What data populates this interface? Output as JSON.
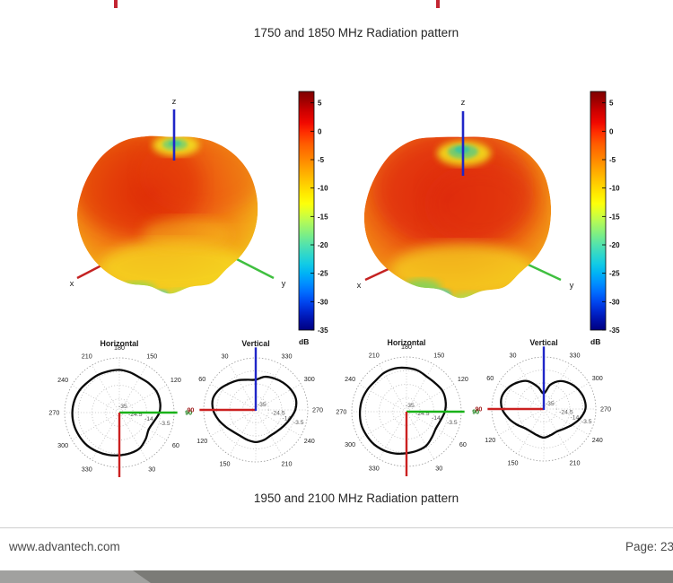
{
  "page": {
    "top_title": "1750 and 1850 MHz Radiation pattern",
    "bottom_title": "1950 and 2100 MHz Radiation pattern",
    "footer_url": "www.advantech.com",
    "footer_page": "Page: 23"
  },
  "axes3d": {
    "x": "x",
    "y": "y",
    "z": "z"
  },
  "colorbar": {
    "label": "dB",
    "ticks": [
      5,
      0,
      -5,
      -10,
      -15,
      -20,
      -25,
      -30,
      -35
    ],
    "vmax": 7,
    "vmin": -35
  },
  "chart_data": [
    {
      "type": "3d-surface",
      "description": "3D antenna radiation pattern, left plot",
      "colormap": "jet",
      "axis_labels": [
        "x",
        "y",
        "z"
      ],
      "colorbar_label": "dB",
      "colorbar_ticks": [
        5,
        0,
        -5,
        -10,
        -15,
        -20,
        -25,
        -30,
        -35
      ],
      "colorbar_range": [
        7,
        -35
      ]
    },
    {
      "type": "3d-surface",
      "description": "3D antenna radiation pattern, right plot",
      "colormap": "jet",
      "axis_labels": [
        "x",
        "y",
        "z"
      ],
      "colorbar_label": "dB",
      "colorbar_ticks": [
        5,
        0,
        -5,
        -10,
        -15,
        -20,
        -25,
        -30,
        -35
      ],
      "colorbar_range": [
        7,
        -35
      ]
    },
    {
      "type": "polar",
      "title": "Horizontal",
      "orientation": "horizontal",
      "angle_labels_deg": [
        30,
        60,
        90,
        120,
        150,
        180,
        210,
        240,
        270,
        300,
        330
      ],
      "radial_ticks_db": [
        -35,
        -24.5,
        -14,
        -3.5
      ],
      "r_min": -35,
      "r_max": 7,
      "theta_deg": [
        0,
        15,
        30,
        45,
        60,
        75,
        90,
        105,
        120,
        135,
        150,
        165,
        180,
        195,
        210,
        225,
        240,
        255,
        270,
        285,
        300,
        315,
        330,
        345
      ],
      "gain_db": [
        -2.2,
        -2.7,
        -3.5,
        -6.4,
        -9.0,
        -7.7,
        -4.3,
        -2.7,
        -2.2,
        -3.1,
        -3.9,
        -3.1,
        -2.2,
        -2.2,
        -1.8,
        -1.4,
        -0.1,
        0.7,
        1.1,
        1.1,
        0.7,
        0.3,
        -0.6,
        -1.4
      ]
    },
    {
      "type": "polar",
      "title": "Vertical",
      "orientation": "vertical",
      "angle_labels_deg": [
        30,
        60,
        90,
        120,
        150,
        210,
        240,
        270,
        300,
        330
      ],
      "radial_ticks_db": [
        -35,
        -24.5,
        -14,
        -3.5
      ],
      "r_min": -35,
      "r_max": 7,
      "theta_deg": [
        0,
        15,
        30,
        45,
        60,
        75,
        90,
        105,
        120,
        135,
        150,
        165,
        180,
        195,
        210,
        225,
        240,
        255,
        270,
        285,
        300,
        315,
        330,
        345
      ],
      "gain_db": [
        -10.6,
        -9.8,
        -7.3,
        -4.8,
        -1.4,
        0.7,
        -0.6,
        -3.9,
        -7.3,
        -9.8,
        -10.6,
        -9.8,
        -9.0,
        -9.8,
        -11.1,
        -10.6,
        -9.0,
        -6.4,
        -3.1,
        -1.4,
        -2.2,
        -3.9,
        -5.6,
        -7.3
      ]
    },
    {
      "type": "polar",
      "title": "Horizontal",
      "orientation": "horizontal",
      "angle_labels_deg": [
        30,
        60,
        90,
        120,
        150,
        180,
        210,
        240,
        270,
        300,
        330
      ],
      "radial_ticks_db": [
        -35,
        -24.5,
        -14,
        -3.5
      ],
      "r_min": -35,
      "r_max": 7,
      "theta_deg": [
        0,
        15,
        30,
        45,
        60,
        75,
        90,
        105,
        120,
        135,
        150,
        165,
        180,
        195,
        210,
        225,
        240,
        255,
        270,
        285,
        300,
        315,
        330,
        345
      ],
      "gain_db": [
        -3.1,
        -3.9,
        -4.8,
        -7.3,
        -9.0,
        -8.1,
        -5.6,
        -3.9,
        -3.1,
        -3.9,
        -3.9,
        -2.2,
        -1.4,
        -0.6,
        -0.6,
        -1.4,
        -0.6,
        0.3,
        0.7,
        1.1,
        0.7,
        0.3,
        -0.6,
        -1.8
      ]
    },
    {
      "type": "polar",
      "title": "Vertical",
      "orientation": "vertical",
      "angle_labels_deg": [
        30,
        60,
        90,
        120,
        150,
        210,
        240,
        270,
        300,
        330
      ],
      "radial_ticks_db": [
        -35,
        -24.5,
        -14,
        -3.5
      ],
      "r_min": -35,
      "r_max": 7,
      "theta_deg": [
        0,
        15,
        30,
        45,
        60,
        75,
        90,
        105,
        120,
        135,
        150,
        165,
        180,
        195,
        210,
        225,
        240,
        255,
        270,
        285,
        300,
        315,
        330,
        345
      ],
      "gain_db": [
        -22.4,
        -16.5,
        -9.0,
        -4.8,
        -1.4,
        0.3,
        -1.4,
        -5.6,
        -9.8,
        -13.2,
        -14.0,
        -13.2,
        -11.9,
        -13.2,
        -14.0,
        -12.3,
        -9.0,
        -4.8,
        -1.4,
        -1.4,
        -3.1,
        -5.6,
        -9.0,
        -14.8
      ]
    }
  ]
}
